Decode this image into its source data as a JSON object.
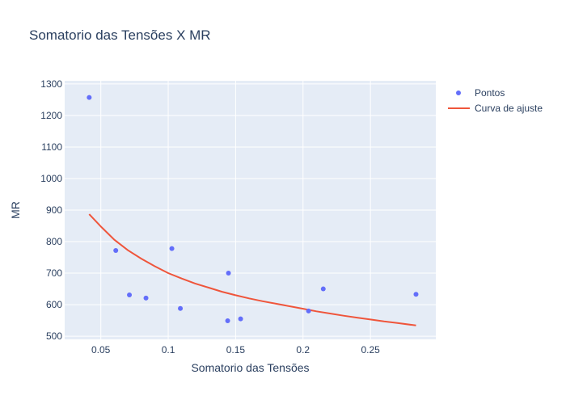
{
  "chart_data": {
    "type": "scatter",
    "title": "Somatorio das Tensões X MR",
    "xlabel": "Somatorio das Tensões",
    "ylabel": "MR",
    "xlim": [
      0.0232,
      0.2985
    ],
    "ylim": [
      490,
      1310
    ],
    "x_ticks": [
      0.05,
      0.1,
      0.15,
      0.2,
      0.25
    ],
    "x_tick_labels": [
      "0.05",
      "0.1",
      "0.15",
      "0.2",
      "0.25"
    ],
    "y_ticks": [
      500,
      600,
      700,
      800,
      900,
      1000,
      1100,
      1200,
      1300
    ],
    "y_tick_labels": [
      "500",
      "600",
      "700",
      "800",
      "900",
      "1000",
      "1100",
      "1200",
      "1300"
    ],
    "grid": true,
    "legend_position": "top-right",
    "series": [
      {
        "name": "Pontos",
        "mode": "markers",
        "color": "#636efa",
        "x": [
          0.0414,
          0.0611,
          0.0712,
          0.0835,
          0.1027,
          0.109,
          0.1441,
          0.1447,
          0.1537,
          0.2041,
          0.215,
          0.2838
        ],
        "y": [
          1257,
          772,
          631,
          621,
          778,
          588,
          549,
          700,
          555,
          580,
          650,
          633
        ]
      },
      {
        "name": "Curva de ajuste",
        "mode": "lines",
        "color": "#ef553b",
        "x": [
          0.0414,
          0.05,
          0.06,
          0.07,
          0.08,
          0.09,
          0.1,
          0.11,
          0.12,
          0.13,
          0.14,
          0.15,
          0.16,
          0.17,
          0.18,
          0.19,
          0.2,
          0.21,
          0.22,
          0.23,
          0.24,
          0.25,
          0.26,
          0.27,
          0.2838
        ],
        "y": [
          887,
          848,
          806,
          773,
          746,
          722,
          700,
          683,
          667,
          654,
          641,
          630,
          620,
          611,
          603,
          595,
          587,
          579,
          572,
          565,
          559,
          553,
          547,
          542,
          534
        ]
      }
    ]
  }
}
